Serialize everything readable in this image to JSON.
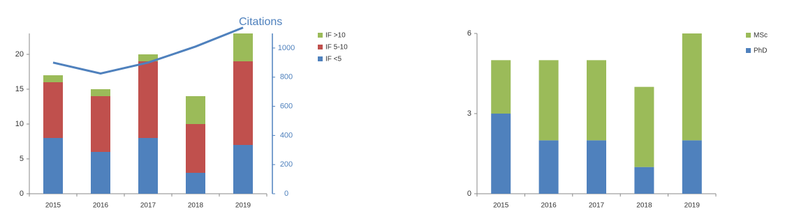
{
  "chart_data": [
    {
      "type": "stacked_bar",
      "categories": [
        "2015",
        "2016",
        "2017",
        "2018",
        "2019"
      ],
      "series": [
        {
          "name": "IF <5",
          "color": "#4f81bd",
          "values": [
            8,
            6,
            8,
            3,
            7
          ]
        },
        {
          "name": "IF 5-10",
          "color": "#c0504d",
          "values": [
            8,
            8,
            11,
            7,
            12
          ]
        },
        {
          "name": "IF >10",
          "color": "#9bbb59",
          "values": [
            1,
            1,
            1,
            4,
            4
          ]
        },
        {
          "name": "Citations",
          "color": "#4f81bd",
          "type": "line",
          "axis": "y2",
          "values": [
            900,
            825,
            900,
            1010,
            1140
          ]
        }
      ],
      "ylim": [
        0,
        23
      ],
      "yticks": [
        0,
        5,
        10,
        15,
        20
      ],
      "y2lim": [
        0,
        1100
      ],
      "y2ticks": [
        0,
        200,
        400,
        600,
        800,
        1000
      ],
      "legend": "right"
    },
    {
      "type": "stacked_bar",
      "categories": [
        "2015",
        "2016",
        "2017",
        "2018",
        "2019"
      ],
      "series": [
        {
          "name": "PhD",
          "color": "#4f81bd",
          "values": [
            3,
            2,
            2,
            1,
            2
          ]
        },
        {
          "name": "MSc",
          "color": "#9bbb59",
          "values": [
            2,
            3,
            3,
            3,
            4
          ]
        }
      ],
      "ylim": [
        0,
        6
      ],
      "yticks": [
        0,
        3,
        6
      ],
      "legend": "right"
    }
  ]
}
